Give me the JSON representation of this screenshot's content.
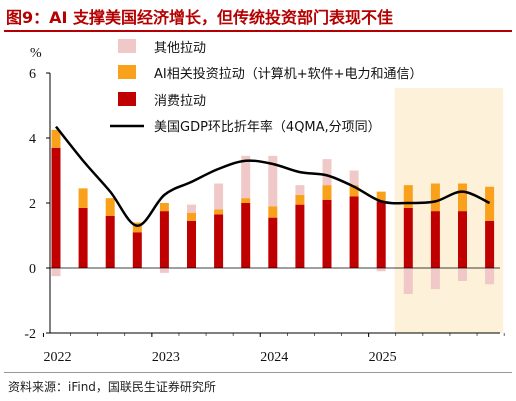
{
  "figure": {
    "title": "图9：AI 支撑美国经济增长，但传统投资部门表现不佳",
    "source": "资料来源：iFind，国联民生证券研究所"
  },
  "chart_data": {
    "type": "bar",
    "stacked": true,
    "ylabel": "%",
    "ylim": [
      -2,
      6
    ],
    "yticks": [
      -2,
      0,
      2,
      4,
      6
    ],
    "x_tick_labels": [
      "2022",
      "2023",
      "2024",
      "2025"
    ],
    "categories": [
      "2022Q1",
      "2022Q2",
      "2022Q3",
      "2022Q4",
      "2023Q1",
      "2023Q2",
      "2023Q3",
      "2023Q4",
      "2024Q1",
      "2024Q2",
      "2024Q3",
      "2024Q4",
      "2025Q1",
      "2025Q2",
      "2025Q3",
      "2025Q4",
      "2026Q1"
    ],
    "highlight_range": [
      "2025Q2",
      "2026Q1"
    ],
    "highlight_color": "#fdf1d9",
    "series": [
      {
        "name": "其他拉动",
        "kind": "bar",
        "color": "#f0c8c8",
        "values": [
          -0.25,
          0,
          0,
          0,
          -0.15,
          0.25,
          0.8,
          1.3,
          1.55,
          0.3,
          0.8,
          0.45,
          -0.1,
          -0.8,
          -0.65,
          -0.4,
          -0.5
        ]
      },
      {
        "name": "AI相关投资拉动（计算机+软件+电力和通信）",
        "kind": "bar",
        "color": "#f9a11b",
        "values": [
          0.55,
          0.6,
          0.55,
          0.3,
          0.25,
          0.25,
          0.15,
          0.15,
          0.35,
          0.3,
          0.45,
          0.35,
          0.3,
          0.7,
          0.85,
          0.85,
          1.05
        ]
      },
      {
        "name": "消费拉动",
        "kind": "bar",
        "color": "#c00000",
        "values": [
          3.7,
          1.85,
          1.6,
          1.1,
          1.75,
          1.45,
          1.65,
          2.0,
          1.55,
          1.95,
          2.1,
          2.2,
          2.05,
          1.85,
          1.75,
          1.75,
          1.45
        ]
      },
      {
        "name": "美国GDP环比折年率（4QMA,分项同）",
        "kind": "line",
        "color": "#000000",
        "values": [
          4.35,
          3.3,
          2.35,
          1.3,
          2.25,
          2.65,
          3.05,
          3.3,
          3.2,
          2.95,
          2.85,
          2.5,
          2.05,
          2.0,
          2.05,
          2.35,
          2.0
        ]
      }
    ],
    "legend_position": "top",
    "grid": false
  }
}
